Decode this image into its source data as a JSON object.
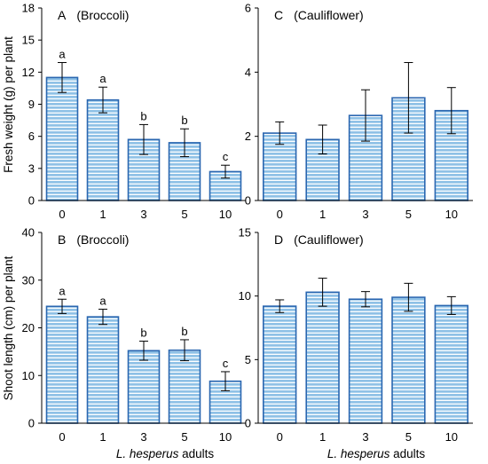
{
  "figure": {
    "x_axis_label_italic": "L. hesperus",
    "x_axis_label_rest": " adults",
    "bar_fill": "#8fc1e6",
    "bar_stripe": "#ffffff",
    "bar_edge": "#2a66b0"
  },
  "chart_data": [
    {
      "type": "bar",
      "panel": "A",
      "title": "(Broccoli)",
      "ylabel": "Fresh weight (g) per plant",
      "categories": [
        "0",
        "1",
        "3",
        "5",
        "10"
      ],
      "values": [
        11.5,
        9.4,
        5.7,
        5.4,
        2.7
      ],
      "errors": [
        1.4,
        1.2,
        1.4,
        1.3,
        0.6
      ],
      "letters": [
        "a",
        "a",
        "b",
        "b",
        "c"
      ],
      "ylim": [
        0,
        18
      ],
      "yticks": [
        0,
        3,
        6,
        9,
        12,
        15,
        18
      ]
    },
    {
      "type": "bar",
      "panel": "C",
      "title": "(Cauliflower)",
      "ylabel": "",
      "categories": [
        "0",
        "1",
        "3",
        "5",
        "10"
      ],
      "values": [
        2.1,
        1.9,
        2.65,
        3.2,
        2.8
      ],
      "errors": [
        0.35,
        0.45,
        0.8,
        1.1,
        0.72
      ],
      "letters": [
        "",
        "",
        "",
        "",
        ""
      ],
      "ylim": [
        0,
        6
      ],
      "yticks": [
        0,
        2,
        4,
        6
      ]
    },
    {
      "type": "bar",
      "panel": "B",
      "title": "(Broccoli)",
      "ylabel": "Shoot length (cm) per plant",
      "categories": [
        "0",
        "1",
        "3",
        "5",
        "10"
      ],
      "values": [
        24.5,
        22.3,
        15.2,
        15.3,
        8.8
      ],
      "errors": [
        1.5,
        1.6,
        2.0,
        2.2,
        2.0
      ],
      "letters": [
        "a",
        "a",
        "b",
        "b",
        "c"
      ],
      "ylim": [
        0,
        40
      ],
      "yticks": [
        0,
        10,
        20,
        30,
        40
      ]
    },
    {
      "type": "bar",
      "panel": "D",
      "title": "(Cauliflower)",
      "ylabel": "",
      "categories": [
        "0",
        "1",
        "3",
        "5",
        "10"
      ],
      "values": [
        9.2,
        10.3,
        9.75,
        9.9,
        9.25
      ],
      "errors": [
        0.5,
        1.1,
        0.6,
        1.1,
        0.7
      ],
      "letters": [
        "",
        "",
        "",
        "",
        ""
      ],
      "ylim": [
        0,
        15
      ],
      "yticks": [
        0,
        5,
        10,
        15
      ]
    }
  ]
}
